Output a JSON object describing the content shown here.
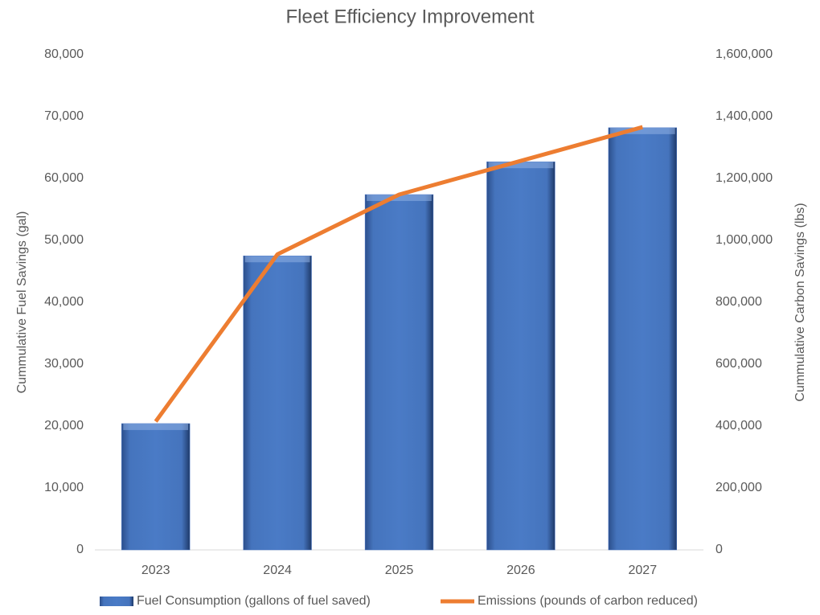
{
  "chart_data": {
    "type": "combo",
    "title": "Fleet Efficiency Improvement",
    "y_label": "Cummulative Fuel Savings (gal)",
    "y2_label": "Cummulative Carbon Savings (lbs)",
    "categories": [
      "2023",
      "2024",
      "2025",
      "2026",
      "2027"
    ],
    "series": [
      {
        "name": "Fuel Consumption (gallons of fuel saved)",
        "type": "bar",
        "color": "#4472c4",
        "values": [
          20400,
          47500,
          57400,
          62700,
          68200
        ]
      },
      {
        "name": "Emissions (pounds of carbon reduced)",
        "type": "line",
        "axis": "y2",
        "color": "#ed7d31",
        "values": [
          415000,
          955000,
          1148000,
          1257000,
          1366000
        ]
      }
    ],
    "ylim": [
      0,
      80000
    ],
    "yticks": [
      0,
      {
        "value": 10000,
        "label": "10,000"
      },
      {
        "value": 20000,
        "label": "20,000"
      },
      {
        "value": 30000,
        "label": "30,000"
      },
      {
        "value": 40000,
        "label": "40,000"
      },
      {
        "value": 50000,
        "label": "50,000"
      },
      {
        "value": 60000,
        "label": "60,000"
      },
      {
        "value": 70000,
        "label": "70,000"
      },
      {
        "value": 80000,
        "label": "80,000"
      }
    ],
    "y2lim": [
      0,
      1600000
    ],
    "y2ticks": [
      0,
      {
        "value": 200000,
        "label": "200,000"
      },
      {
        "value": 400000,
        "label": "400,000"
      },
      {
        "value": 600000,
        "label": "600,000"
      },
      {
        "value": 800000,
        "label": "800,000"
      },
      {
        "value": 1000000,
        "label": "1,000,000"
      },
      {
        "value": 1200000,
        "label": "1,200,000"
      },
      {
        "value": 1400000,
        "label": "1,400,000"
      },
      {
        "value": 1600000,
        "label": "1,600,000"
      }
    ],
    "grid": false,
    "legend": "bottom"
  }
}
